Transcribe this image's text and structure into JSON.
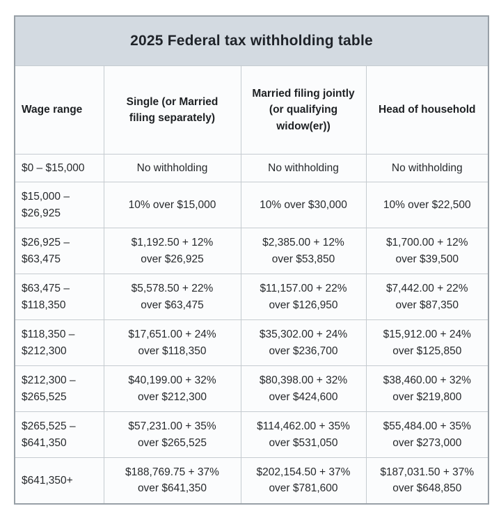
{
  "title": "2025 Federal tax withholding table",
  "colors": {
    "title_band_bg": "#d3dae1",
    "cell_bg": "#fbfcfd",
    "inner_border": "#c5cbd0",
    "outer_border": "#98a0a7",
    "text": "#26292c"
  },
  "table": {
    "columns": [
      "Wage range",
      "Single (or Married\nfiling separately)",
      "Married filing jointly\n(or qualifying\nwidow(er))",
      "Head of household"
    ],
    "rows": [
      [
        "$0 – $15,000",
        "No withholding",
        "No withholding",
        "No withholding"
      ],
      [
        "$15,000 –\n$26,925",
        "10% over $15,000",
        "10% over $30,000",
        "10% over $22,500"
      ],
      [
        "$26,925 –\n$63,475",
        "$1,192.50 + 12%\nover $26,925",
        "$2,385.00 + 12%\nover $53,850",
        "$1,700.00 + 12%\nover $39,500"
      ],
      [
        "$63,475 –\n$118,350",
        "$5,578.50 + 22%\nover $63,475",
        "$11,157.00 + 22%\nover $126,950",
        "$7,442.00 + 22%\nover $87,350"
      ],
      [
        "$118,350 –\n$212,300",
        "$17,651.00 + 24%\nover $118,350",
        "$35,302.00 + 24%\nover $236,700",
        "$15,912.00 + 24%\nover $125,850"
      ],
      [
        "$212,300 –\n$265,525",
        "$40,199.00 + 32%\nover $212,300",
        "$80,398.00 + 32%\nover $424,600",
        "$38,460.00 + 32%\nover $219,800"
      ],
      [
        "$265,525 –\n$641,350",
        "$57,231.00 + 35%\nover $265,525",
        "$114,462.00 + 35%\nover $531,050",
        "$55,484.00 + 35%\nover $273,000"
      ],
      [
        "$641,350+",
        "$188,769.75 + 37%\nover $641,350",
        "$202,154.50 + 37%\nover $781,600",
        "$187,031.50 + 37%\nover $648,850"
      ]
    ]
  }
}
